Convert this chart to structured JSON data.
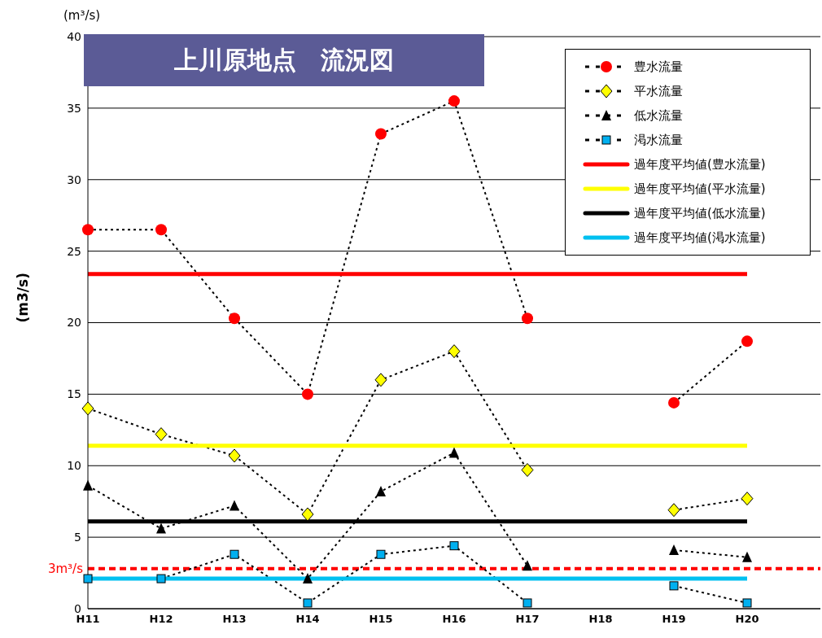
{
  "chart_data": {
    "type": "line",
    "title": "上川原地点　流況図",
    "ylabel": "(m3/s)",
    "annotations": [
      "(m³/s)"
    ],
    "categories": [
      "H11",
      "H12",
      "H13",
      "H14",
      "H15",
      "H16",
      "H17",
      "H18",
      "H19",
      "H20",
      null
    ],
    "series": [
      {
        "name": "豊水流量",
        "color": "#ff0000",
        "marker": "circle",
        "line_style": "dotted",
        "values": [
          26.5,
          26.5,
          20.3,
          15.0,
          33.2,
          35.5,
          20.3,
          null,
          14.4,
          18.7,
          null
        ]
      },
      {
        "name": "平水流量",
        "color": "#ffff00",
        "marker": "diamond",
        "line_style": "dotted",
        "values": [
          14.0,
          12.2,
          10.7,
          6.6,
          16.0,
          18.0,
          9.7,
          null,
          6.9,
          7.7,
          null
        ]
      },
      {
        "name": "低水流量",
        "color": "#000000",
        "marker": "triangle",
        "line_style": "dotted",
        "values": [
          8.6,
          5.6,
          7.2,
          2.1,
          8.2,
          10.9,
          3.0,
          null,
          4.1,
          3.6,
          null
        ]
      },
      {
        "name": "渇水流量",
        "color": "#00b0f0",
        "marker": "square",
        "line_style": "dotted",
        "values": [
          2.1,
          2.1,
          3.8,
          0.4,
          3.8,
          4.4,
          0.4,
          null,
          1.6,
          0.4,
          null
        ]
      },
      {
        "name": "過年度平均値(豊水流量)",
        "color": "#ff0000",
        "marker": "none",
        "line_style": "solid",
        "values": [
          23.4,
          23.4,
          23.4,
          23.4,
          23.4,
          23.4,
          23.4,
          23.4,
          23.4,
          23.4,
          null
        ]
      },
      {
        "name": "過年度平均値(平水流量)",
        "color": "#ffff00",
        "marker": "none",
        "line_style": "solid",
        "values": [
          11.4,
          11.4,
          11.4,
          11.4,
          11.4,
          11.4,
          11.4,
          11.4,
          11.4,
          11.4,
          null
        ]
      },
      {
        "name": "過年度平均値(低水流量)",
        "color": "#000000",
        "marker": "none",
        "line_style": "solid",
        "values": [
          6.1,
          6.1,
          6.1,
          6.1,
          6.1,
          6.1,
          6.1,
          6.1,
          6.1,
          6.1,
          null
        ]
      },
      {
        "name": "過年度平均値(渇水流量)",
        "color": "#00c0f0",
        "marker": "none",
        "line_style": "solid",
        "values": [
          2.1,
          2.1,
          2.1,
          2.1,
          2.1,
          2.1,
          2.1,
          2.1,
          2.1,
          2.1,
          null
        ]
      }
    ],
    "ylim": [
      0,
      40
    ],
    "yticks": [
      0,
      5,
      10,
      15,
      20,
      25,
      30,
      35,
      40
    ],
    "grid": "y",
    "legend": "top right",
    "ref_lines": [
      {
        "axis": "y",
        "value": 2.8,
        "label": "3m³/s",
        "color": "#ff0000",
        "line_style": "dashed"
      }
    ]
  }
}
